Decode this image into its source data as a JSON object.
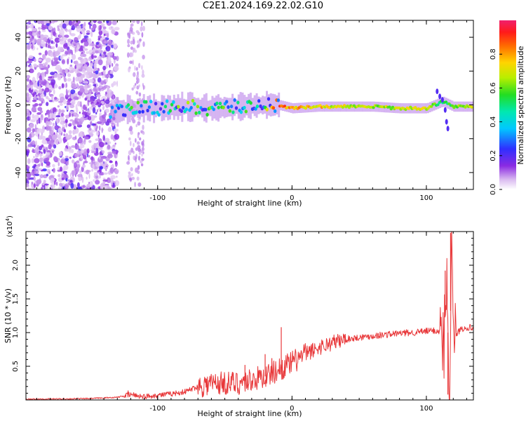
{
  "title": "C2E1.2024.169.22.02.G10",
  "chart_data": [
    {
      "type": "heatmap",
      "xlabel": "Height of straight line (km)",
      "ylabel": "Frequency (Hz)",
      "xlim": [
        -198,
        135
      ],
      "ylim": [
        -50,
        50
      ],
      "xticks": [
        -100,
        0,
        100
      ],
      "yticks": [
        -40,
        -20,
        0,
        20,
        40
      ],
      "colorbar": {
        "label": "Normalized spectral amplitude",
        "range": [
          0,
          1
        ],
        "ticks": [
          "0.0",
          "0.2",
          "0.4",
          "0.6",
          "0.8"
        ]
      },
      "ridge": [
        {
          "x": -135,
          "f": -5,
          "amp": 0.3
        },
        {
          "x": -120,
          "f": -2,
          "amp": 0.5
        },
        {
          "x": -100,
          "f": -2,
          "amp": 0.5
        },
        {
          "x": -80,
          "f": -1,
          "amp": 0.55
        },
        {
          "x": -60,
          "f": -2,
          "amp": 0.55
        },
        {
          "x": -40,
          "f": -1,
          "amp": 0.5
        },
        {
          "x": -20,
          "f": 0,
          "amp": 0.6
        },
        {
          "x": -10,
          "f": 0,
          "amp": 0.85
        },
        {
          "x": 0,
          "f": -2,
          "amp": 0.8
        },
        {
          "x": 20,
          "f": -1,
          "amp": 0.75
        },
        {
          "x": 40,
          "f": -1,
          "amp": 0.7
        },
        {
          "x": 60,
          "f": -1,
          "amp": 0.65
        },
        {
          "x": 80,
          "f": -2,
          "amp": 0.7
        },
        {
          "x": 100,
          "f": -2,
          "amp": 0.7
        },
        {
          "x": 112,
          "f": 2,
          "amp": 0.5
        },
        {
          "x": 120,
          "f": -1,
          "amp": 0.6
        },
        {
          "x": 135,
          "f": -1,
          "amp": 0.7
        }
      ]
    },
    {
      "type": "line",
      "xlabel": "Height of straight line (km)",
      "ylabel": "SNR (10 * v/v)",
      "y_multiplier": "(x10",
      "y_multiplier_exp": "4",
      "y_multiplier_close": ")",
      "xlim": [
        -198,
        135
      ],
      "ylim": [
        0,
        2.5
      ],
      "xticks": [
        -100,
        0,
        100
      ],
      "yticks": [
        "0.5",
        "1.0",
        "1.5",
        "2.0"
      ],
      "color": "#e8383a",
      "x": [
        -198,
        -150,
        -130,
        -120,
        -110,
        -100,
        -90,
        -80,
        -70,
        -60,
        -50,
        -40,
        -30,
        -20,
        -10,
        0,
        10,
        20,
        30,
        40,
        50,
        60,
        70,
        80,
        90,
        100,
        105,
        110,
        113,
        115,
        117,
        119,
        121,
        125,
        130,
        135
      ],
      "y": [
        0.01,
        0.02,
        0.04,
        0.08,
        0.05,
        0.07,
        0.09,
        0.12,
        0.2,
        0.25,
        0.25,
        0.25,
        0.3,
        0.35,
        0.45,
        0.55,
        0.68,
        0.78,
        0.85,
        0.9,
        0.93,
        0.95,
        0.97,
        0.99,
        1.0,
        1.02,
        1.03,
        1.02,
        0.8,
        1.8,
        0.2,
        2.45,
        0.9,
        1.05,
        1.08,
        1.07
      ],
      "spikes": [
        {
          "x": -8,
          "y": 1.08
        },
        {
          "x": -15,
          "y": 0.62
        },
        {
          "x": -20,
          "y": 0.68
        },
        {
          "x": -35,
          "y": 0.52
        },
        {
          "x": -122,
          "y": 0.14
        },
        {
          "x": 114,
          "y": 1.92
        },
        {
          "x": 118,
          "y": 2.48
        },
        {
          "x": 116,
          "y": 0.08
        }
      ]
    }
  ]
}
